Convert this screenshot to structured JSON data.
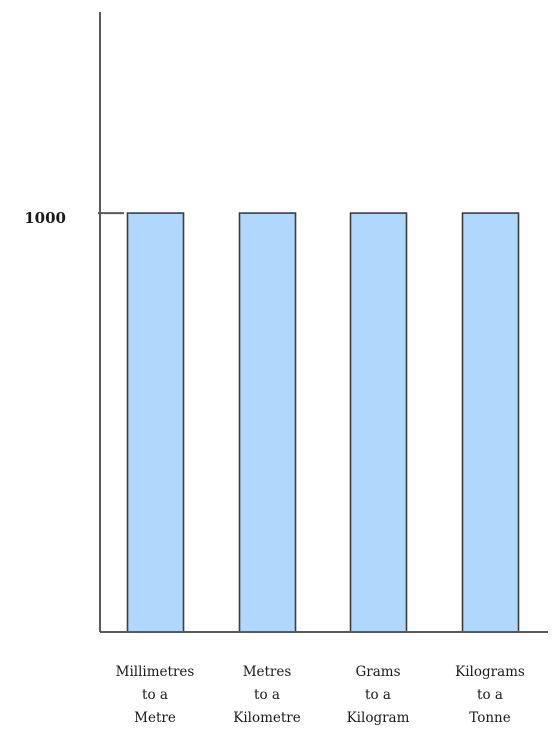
{
  "chart_data": {
    "type": "bar",
    "title": "",
    "xlabel": "",
    "ylabel": "",
    "categories": [
      [
        "Millimetres",
        "to a",
        "Metre"
      ],
      [
        "Metres",
        "to a",
        "Kilometre"
      ],
      [
        "Grams",
        "to a",
        "Kilogram"
      ],
      [
        "Kilograms",
        "to a",
        "Tonne"
      ]
    ],
    "values": [
      1000,
      1000,
      1000,
      1000
    ],
    "ylim": [
      0,
      1480
    ],
    "y_ticks": [
      1000
    ],
    "y_tick_labels": [
      "1000"
    ],
    "grid": false,
    "bar_color": "#b0d8fc",
    "bar_edge_color": "#3d3d3d",
    "axis_color": "#5a5a5a"
  }
}
